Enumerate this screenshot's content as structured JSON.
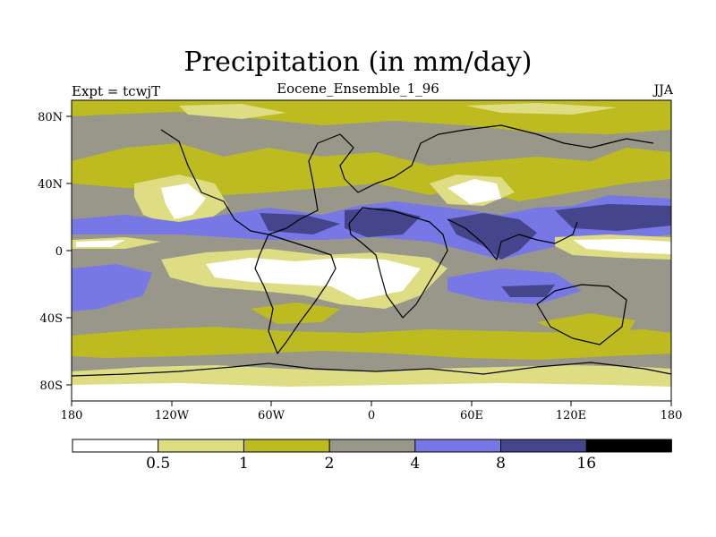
{
  "title": "Precipitation (in mm/day)",
  "experiment": "Expt = tcwjT",
  "case_name": "Eocene_Ensemble_1_96",
  "season": "JJA",
  "map": {
    "lat_labels": [
      "80N",
      "40N",
      "0",
      "40S",
      "80S"
    ],
    "lon_labels": [
      "180",
      "120W",
      "60W",
      "0",
      "60E",
      "120E",
      "180"
    ]
  },
  "colorbar": {
    "levels": [
      "0.5",
      "1",
      "2",
      "4",
      "8",
      "16"
    ],
    "colors": [
      "#ffffff",
      "#dedd84",
      "#bdbb1f",
      "#98978a",
      "#7777e6",
      "#45458c",
      "#000000"
    ]
  }
}
